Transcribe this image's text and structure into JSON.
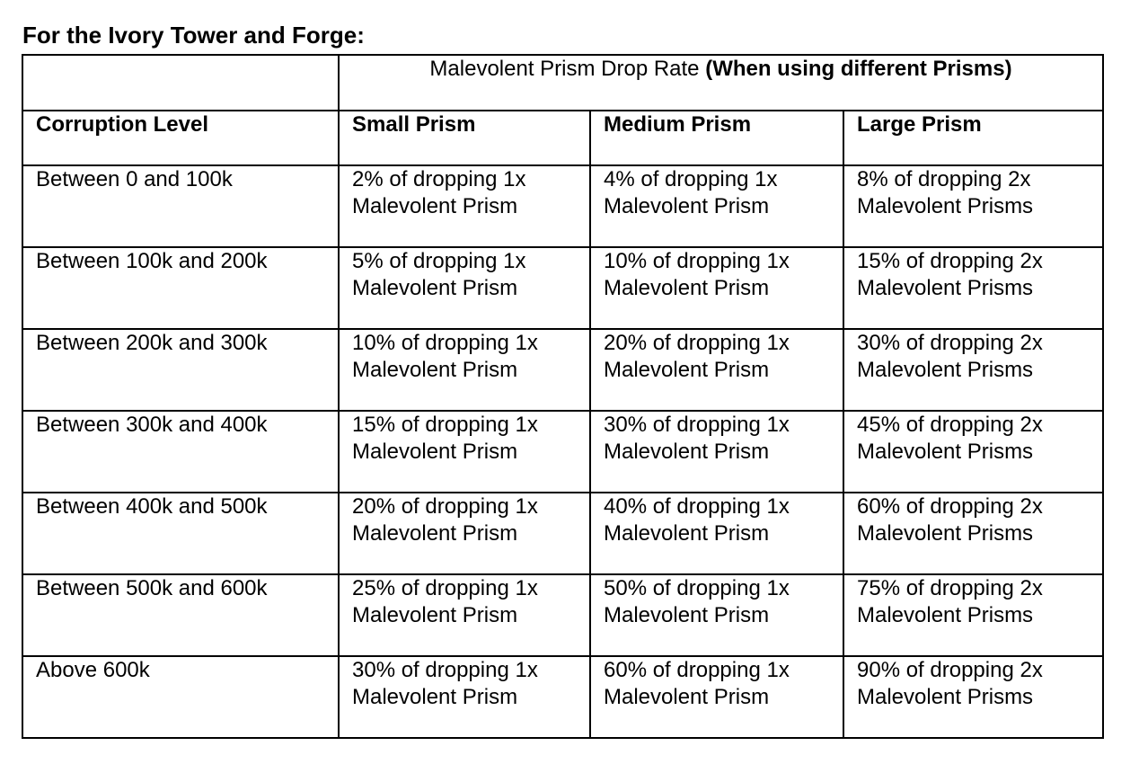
{
  "title": "For the Ivory Tower and Forge:",
  "table": {
    "top_header": {
      "normal": "Malevolent Prism Drop Rate ",
      "bold": "(When using different Prisms)"
    },
    "columns": [
      "Corruption Level",
      "Small Prism",
      "Medium Prism",
      "Large Prism"
    ],
    "rows": [
      {
        "level": "Between 0 and 100k",
        "small": [
          "2% of dropping 1x",
          "Malevolent Prism"
        ],
        "medium": [
          "4% of dropping 1x",
          "Malevolent Prism"
        ],
        "large": [
          "8% of dropping 2x",
          "Malevolent Prisms"
        ]
      },
      {
        "level": "Between 100k and 200k",
        "small": [
          "5% of dropping 1x",
          "Malevolent Prism"
        ],
        "medium": [
          "10% of dropping 1x",
          "Malevolent Prism"
        ],
        "large": [
          "15% of dropping 2x",
          "Malevolent Prisms"
        ]
      },
      {
        "level": "Between 200k and 300k",
        "small": [
          "10% of dropping 1x",
          "Malevolent Prism"
        ],
        "medium": [
          "20% of dropping 1x",
          "Malevolent Prism"
        ],
        "large": [
          "30% of dropping 2x",
          "Malevolent Prisms"
        ]
      },
      {
        "level": "Between 300k and 400k",
        "small": [
          "15% of dropping 1x",
          "Malevolent Prism"
        ],
        "medium": [
          "30% of dropping 1x",
          "Malevolent Prism"
        ],
        "large": [
          "45% of dropping 2x",
          "Malevolent Prisms"
        ]
      },
      {
        "level": "Between 400k and 500k",
        "small": [
          "20% of dropping 1x",
          "Malevolent Prism"
        ],
        "medium": [
          "40% of dropping 1x",
          "Malevolent Prism"
        ],
        "large": [
          "60% of dropping 2x",
          "Malevolent Prisms"
        ]
      },
      {
        "level": "Between 500k and 600k",
        "small": [
          "25% of dropping 1x",
          "Malevolent Prism"
        ],
        "medium": [
          "50% of dropping 1x",
          "Malevolent Prism"
        ],
        "large": [
          "75% of dropping 2x",
          "Malevolent Prisms"
        ]
      },
      {
        "level": "Above 600k",
        "small": [
          "30% of dropping 1x",
          "Malevolent Prism"
        ],
        "medium": [
          "60% of dropping 1x",
          "Malevolent Prism"
        ],
        "large": [
          "90% of dropping 2x",
          "Malevolent Prisms"
        ]
      }
    ]
  }
}
